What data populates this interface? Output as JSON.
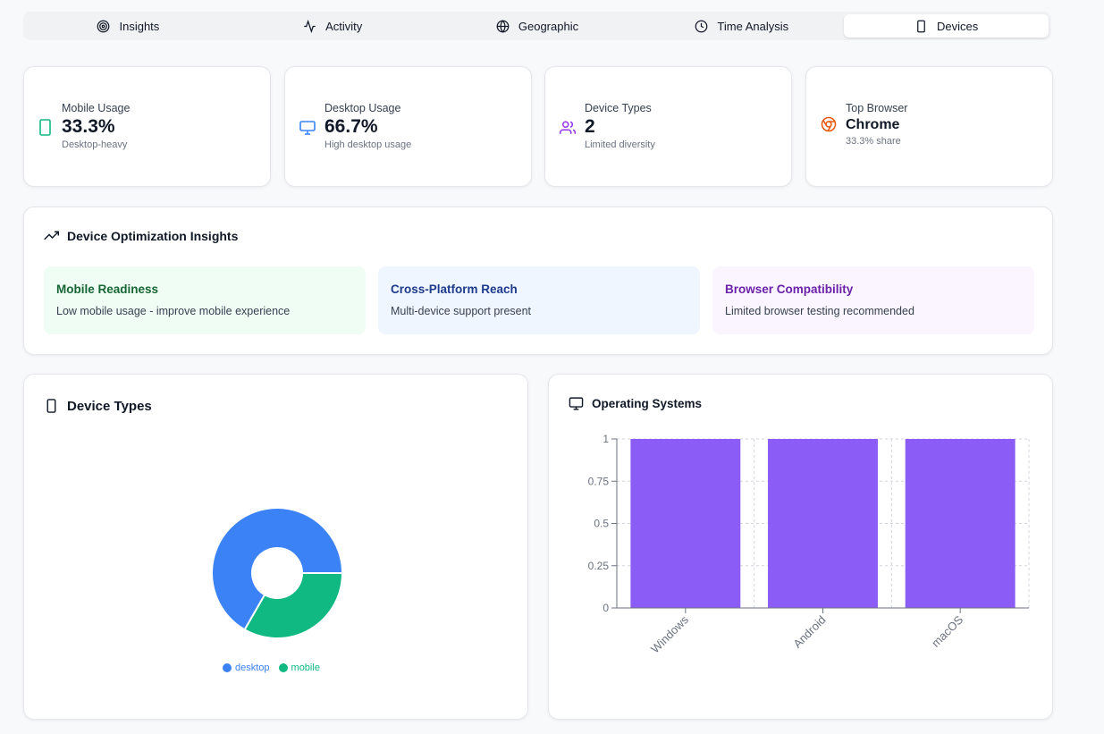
{
  "tabs": [
    {
      "label": "Insights",
      "icon": "target-icon"
    },
    {
      "label": "Activity",
      "icon": "activity-icon"
    },
    {
      "label": "Geographic",
      "icon": "globe-icon"
    },
    {
      "label": "Time Analysis",
      "icon": "clock-icon"
    },
    {
      "label": "Devices",
      "icon": "smartphone-icon",
      "active": true
    }
  ],
  "stats": {
    "mobile": {
      "label": "Mobile Usage",
      "value": "33.3%",
      "sub": "Desktop-heavy",
      "color": "#10b981"
    },
    "desktop": {
      "label": "Desktop Usage",
      "value": "66.7%",
      "sub": "High desktop usage",
      "color": "#3b82f6"
    },
    "types": {
      "label": "Device Types",
      "value": "2",
      "sub": "Limited diversity",
      "color": "#9333ea"
    },
    "browser": {
      "label": "Top Browser",
      "value": "Chrome",
      "sub": "33.3% share",
      "color": "#ea580c"
    }
  },
  "insights": {
    "title": "Device Optimization Insights",
    "items": [
      {
        "title": "Mobile Readiness",
        "desc": "Low mobile usage - improve mobile experience",
        "title_color": "#166534",
        "bg": "#f0fdf4"
      },
      {
        "title": "Cross-Platform Reach",
        "desc": "Multi-device support present",
        "title_color": "#1e3a8a",
        "bg": "#eff6ff"
      },
      {
        "title": "Browser Compatibility",
        "desc": "Limited browser testing recommended",
        "title_color": "#6b21a8",
        "bg": "#faf5ff"
      }
    ]
  },
  "device_panel": {
    "title": "Device Types"
  },
  "os_panel": {
    "title": "Operating Systems"
  },
  "chart_data": [
    {
      "type": "pie",
      "title": "",
      "categories": [
        "desktop",
        "mobile"
      ],
      "values": [
        66.7,
        33.3
      ],
      "colors": [
        "#3b82f6",
        "#10b981"
      ],
      "legend": "bottom"
    },
    {
      "type": "bar",
      "title": "",
      "categories": [
        "Windows",
        "Android",
        "macOS"
      ],
      "values": [
        1,
        1,
        1
      ],
      "yticks": [
        "0",
        "0.25",
        "0.5",
        "0.75",
        "1"
      ],
      "ylim": [
        0,
        1
      ],
      "color": "#8b5cf6",
      "grid": true
    }
  ]
}
